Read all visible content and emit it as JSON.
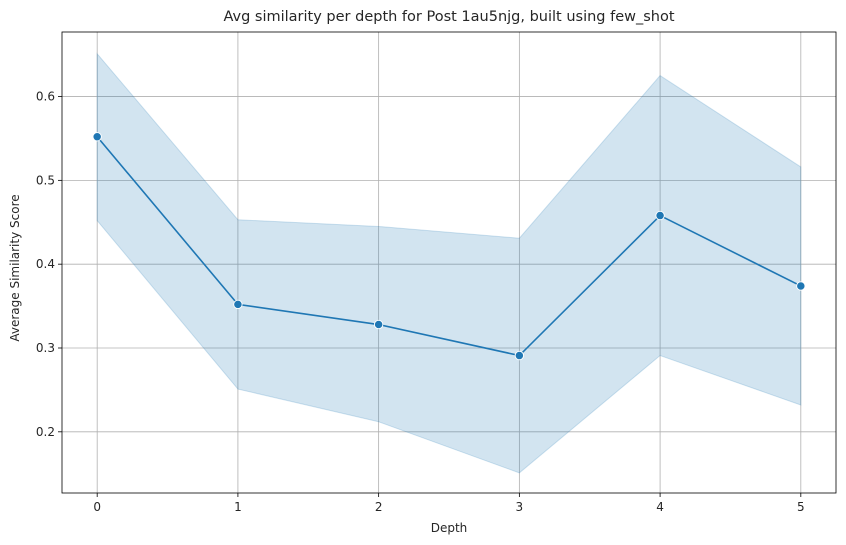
{
  "chart_data": {
    "type": "line",
    "title": "Avg similarity per depth for Post 1au5njg, built using few_shot",
    "xlabel": "Depth",
    "ylabel": "Average Similarity Score",
    "x": [
      0,
      1,
      2,
      3,
      4,
      5
    ],
    "x_tick_labels": [
      "0",
      "1",
      "2",
      "3",
      "4",
      "5"
    ],
    "y_ticks": [
      0.2,
      0.3,
      0.4,
      0.5,
      0.6
    ],
    "y_tick_labels": [
      "0.2",
      "0.3",
      "0.4",
      "0.5",
      "0.6"
    ],
    "xlim": [
      -0.25,
      5.25
    ],
    "ylim": [
      0.127,
      0.677
    ],
    "grid": true,
    "series": [
      {
        "values": [
          0.552,
          0.352,
          0.328,
          0.291,
          0.458,
          0.374
        ],
        "ci_lower": [
          0.452,
          0.251,
          0.212,
          0.151,
          0.291,
          0.232
        ],
        "ci_upper": [
          0.651,
          0.453,
          0.445,
          0.431,
          0.625,
          0.516
        ],
        "color": "#1f77b4",
        "band_color": "#1f77b4",
        "marker": "circle"
      }
    ]
  }
}
